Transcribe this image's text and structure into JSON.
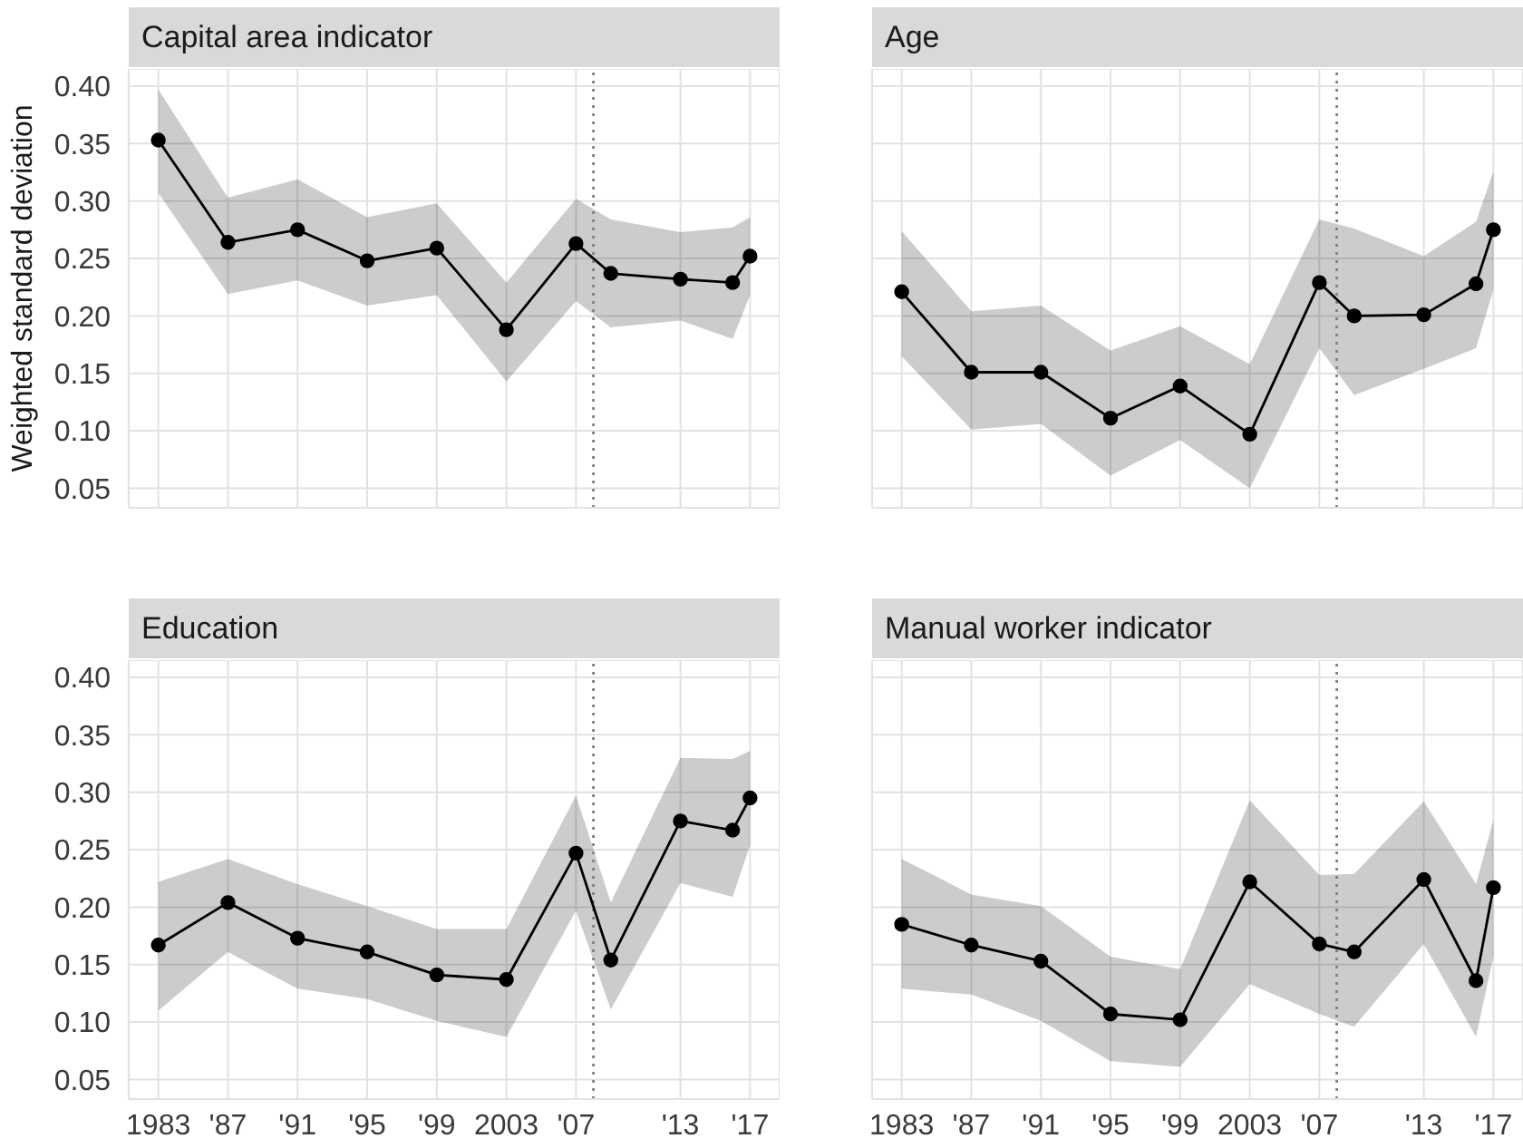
{
  "chart_data": [
    {
      "type": "line",
      "title": "Capital area indicator",
      "ylabel": "Weighted standard deviation",
      "x": [
        1983,
        1987,
        1991,
        1995,
        1999,
        2003,
        2007,
        2009,
        2013,
        2016,
        2017
      ],
      "series": [
        {
          "color": "#000000",
          "values": [
            0.353,
            0.264,
            0.275,
            0.248,
            0.259,
            0.188,
            0.263,
            0.237,
            0.232,
            0.229,
            0.252
          ],
          "upper": [
            0.397,
            0.303,
            0.319,
            0.286,
            0.298,
            0.229,
            0.302,
            0.284,
            0.273,
            0.277,
            0.286
          ],
          "lower": [
            0.307,
            0.219,
            0.231,
            0.209,
            0.218,
            0.143,
            0.213,
            0.19,
            0.196,
            0.18,
            0.218
          ]
        }
      ],
      "xlim": [
        1981.3,
        2018.7
      ],
      "xticks": [
        {
          "value": 1983,
          "label": null
        },
        {
          "value": 1987,
          "label": null
        },
        {
          "value": 1991,
          "label": null
        },
        {
          "value": 1995,
          "label": null
        },
        {
          "value": 1999,
          "label": null
        },
        {
          "value": 2003,
          "label": null
        },
        {
          "value": 2007,
          "label": null
        },
        {
          "value": 2013,
          "label": null
        },
        {
          "value": 2017,
          "label": null
        }
      ],
      "ylim": [
        0.033,
        0.415
      ],
      "yticks": [
        0.05,
        {
          "value": 0.1,
          "label": "0.10"
        },
        0.15,
        {
          "value": 0.2,
          "label": "0.20"
        },
        0.25,
        {
          "value": 0.3,
          "label": "0.30"
        },
        0.35,
        {
          "value": 0.4,
          "label": "0.40"
        }
      ],
      "ref_lines": [
        {
          "axis": "x",
          "value": 2008,
          "color": "#808080",
          "line_style": "dotted"
        }
      ],
      "grid": true,
      "marker": "circle",
      "line_style": "solid",
      "tick_labels": "y"
    },
    {
      "type": "line",
      "title": "Age",
      "x": [
        1983,
        1987,
        1991,
        1995,
        1999,
        2003,
        2007,
        2009,
        2013,
        2016,
        2017
      ],
      "series": [
        {
          "color": "#000000",
          "values": [
            0.221,
            0.151,
            0.151,
            0.111,
            0.139,
            0.097,
            0.229,
            0.2,
            0.201,
            0.228,
            0.275
          ],
          "upper": [
            0.274,
            0.204,
            0.209,
            0.17,
            0.191,
            0.158,
            0.284,
            0.276,
            0.252,
            0.282,
            0.326
          ],
          "lower": [
            0.165,
            0.101,
            0.106,
            0.061,
            0.092,
            0.05,
            0.172,
            0.131,
            0.154,
            0.172,
            0.223
          ]
        }
      ],
      "xlim": [
        1981.3,
        2018.7
      ],
      "xticks": [
        {
          "value": 1983,
          "label": null
        },
        {
          "value": 1987,
          "label": null
        },
        {
          "value": 1991,
          "label": null
        },
        {
          "value": 1995,
          "label": null
        },
        {
          "value": 1999,
          "label": null
        },
        {
          "value": 2003,
          "label": null
        },
        {
          "value": 2007,
          "label": null
        },
        {
          "value": 2013,
          "label": null
        },
        {
          "value": 2017,
          "label": null
        }
      ],
      "ylim": [
        0.033,
        0.415
      ],
      "yticks": [
        {
          "value": 0.05,
          "label": null
        },
        {
          "value": 0.1,
          "label": null
        },
        {
          "value": 0.15,
          "label": null
        },
        {
          "value": 0.2,
          "label": null
        },
        {
          "value": 0.25,
          "label": null
        },
        {
          "value": 0.3,
          "label": null
        },
        {
          "value": 0.35,
          "label": null
        },
        {
          "value": 0.4,
          "label": null
        }
      ],
      "ref_lines": [
        {
          "axis": "x",
          "value": 2008,
          "color": "#808080",
          "line_style": "dotted"
        }
      ],
      "grid": true,
      "marker": "circle",
      "line_style": "solid",
      "tick_labels": false
    },
    {
      "type": "line",
      "title": "Education",
      "x": [
        1983,
        1987,
        1991,
        1995,
        1999,
        2003,
        2007,
        2009,
        2013,
        2016,
        2017
      ],
      "series": [
        {
          "color": "#000000",
          "values": [
            0.167,
            0.204,
            0.173,
            0.161,
            0.141,
            0.137,
            0.247,
            0.154,
            0.275,
            0.267,
            0.295
          ],
          "upper": [
            0.222,
            0.242,
            0.22,
            0.201,
            0.181,
            0.181,
            0.297,
            0.204,
            0.33,
            0.329,
            0.336
          ],
          "lower": [
            0.11,
            0.161,
            0.129,
            0.12,
            0.101,
            0.087,
            0.197,
            0.111,
            0.221,
            0.209,
            0.254
          ]
        }
      ],
      "xlim": [
        1981.3,
        2018.7
      ],
      "xticks": [
        {
          "value": 1983,
          "label": "1983"
        },
        {
          "value": 1987,
          "label": "'87"
        },
        {
          "value": 1991,
          "label": "'91"
        },
        {
          "value": 1995,
          "label": "'95"
        },
        {
          "value": 1999,
          "label": "'99"
        },
        {
          "value": 2003,
          "label": "2003"
        },
        {
          "value": 2007,
          "label": "'07"
        },
        {
          "value": 2013,
          "label": "'13"
        },
        {
          "value": 2017,
          "label": "'17"
        }
      ],
      "ylim": [
        0.033,
        0.415
      ],
      "yticks": [
        0.05,
        {
          "value": 0.1,
          "label": "0.10"
        },
        0.15,
        {
          "value": 0.2,
          "label": "0.20"
        },
        0.25,
        {
          "value": 0.3,
          "label": "0.30"
        },
        0.35,
        {
          "value": 0.4,
          "label": "0.40"
        }
      ],
      "ref_lines": [
        {
          "axis": "x",
          "value": 2008,
          "color": "#808080",
          "line_style": "dotted"
        }
      ],
      "grid": true,
      "marker": "circle",
      "line_style": "solid"
    },
    {
      "type": "line",
      "title": "Manual worker indicator",
      "x": [
        1983,
        1987,
        1991,
        1995,
        1999,
        2003,
        2007,
        2009,
        2013,
        2016,
        2017
      ],
      "series": [
        {
          "color": "#000000",
          "values": [
            0.185,
            0.167,
            0.153,
            0.107,
            0.102,
            0.222,
            0.168,
            0.161,
            0.224,
            0.136,
            0.217
          ],
          "upper": [
            0.242,
            0.211,
            0.201,
            0.157,
            0.146,
            0.293,
            0.228,
            0.229,
            0.292,
            0.22,
            0.276
          ],
          "lower": [
            0.129,
            0.124,
            0.101,
            0.066,
            0.061,
            0.133,
            0.107,
            0.096,
            0.168,
            0.087,
            0.157
          ]
        }
      ],
      "xlim": [
        1981.3,
        2018.7
      ],
      "xticks": [
        {
          "value": 1983,
          "label": "1983"
        },
        {
          "value": 1987,
          "label": "'87"
        },
        {
          "value": 1991,
          "label": "'91"
        },
        {
          "value": 1995,
          "label": "'95"
        },
        {
          "value": 1999,
          "label": "'99"
        },
        {
          "value": 2003,
          "label": "2003"
        },
        {
          "value": 2007,
          "label": "'07"
        },
        {
          "value": 2013,
          "label": "'13"
        },
        {
          "value": 2017,
          "label": "'17"
        }
      ],
      "ylim": [
        0.033,
        0.415
      ],
      "yticks": [
        {
          "value": 0.05,
          "label": null
        },
        {
          "value": 0.1,
          "label": null
        },
        {
          "value": 0.15,
          "label": null
        },
        {
          "value": 0.2,
          "label": null
        },
        {
          "value": 0.25,
          "label": null
        },
        {
          "value": 0.3,
          "label": null
        },
        {
          "value": 0.35,
          "label": null
        },
        {
          "value": 0.4,
          "label": null
        }
      ],
      "ref_lines": [
        {
          "axis": "x",
          "value": 2008,
          "color": "#808080",
          "line_style": "dotted"
        }
      ],
      "grid": true,
      "marker": "circle",
      "line_style": "solid",
      "tick_labels": "x"
    }
  ]
}
